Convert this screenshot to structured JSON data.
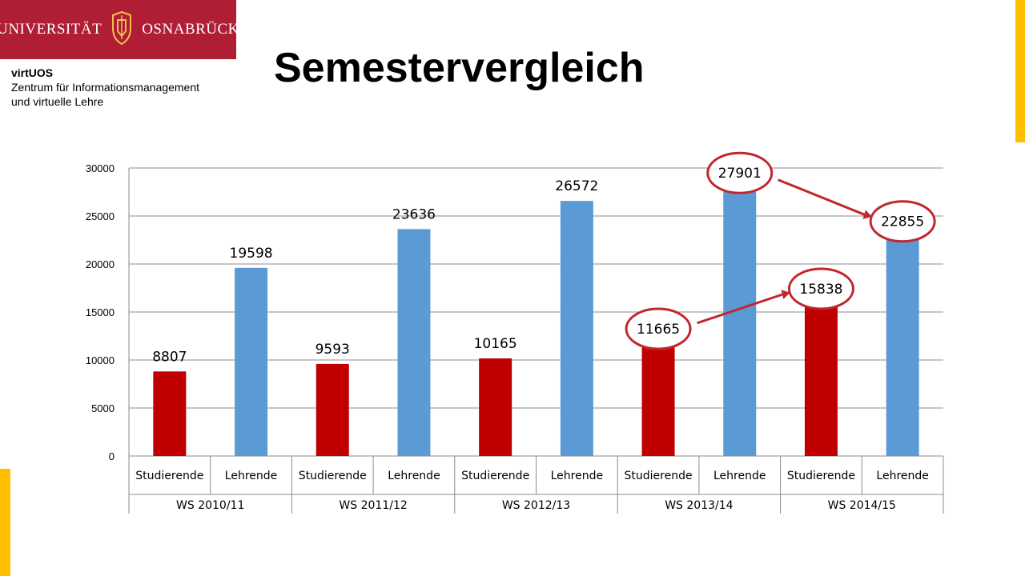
{
  "header": {
    "logo_left": "UNIVERSITÄT",
    "logo_right": "OSNABRÜCK",
    "org_name": "virtUOS",
    "org_line1": "Zentrum für Informationsmanagement",
    "org_line2": "und virtuelle Lehre"
  },
  "slide": {
    "title": "Semestervergleich"
  },
  "colors": {
    "brand": "#b01e35",
    "accent": "#ffbf00",
    "studierende": "#c00000",
    "lehrende": "#5b9bd5",
    "highlight": "#c0272d"
  },
  "chart_data": {
    "type": "bar",
    "title": "",
    "xlabel": "",
    "ylabel": "",
    "ylim": [
      0,
      30000
    ],
    "yticks": [
      "0",
      "5000",
      "10000",
      "15000",
      "20000",
      "25000",
      "30000"
    ],
    "grid": true,
    "legend": "none",
    "groups": [
      "WS 2010/11",
      "WS 2011/12",
      "WS 2012/13",
      "WS 2013/14",
      "WS 2014/15"
    ],
    "categories": [
      "Studierende",
      "Lehrende",
      "Studierende",
      "Lehrende",
      "Studierende",
      "Lehrende",
      "Studierende",
      "Lehrende",
      "Studierende",
      "Lehrende"
    ],
    "values": [
      8807,
      19598,
      9593,
      23636,
      10165,
      26572,
      11665,
      27901,
      15838,
      22855
    ],
    "data_labels": [
      "8807",
      "19598",
      "9593",
      "23636",
      "10165",
      "26572",
      "11665",
      "27901",
      "15838",
      "22855"
    ],
    "highlighted": [
      6,
      7,
      8,
      9
    ],
    "arrows": [
      [
        6,
        8
      ],
      [
        7,
        9
      ]
    ]
  }
}
